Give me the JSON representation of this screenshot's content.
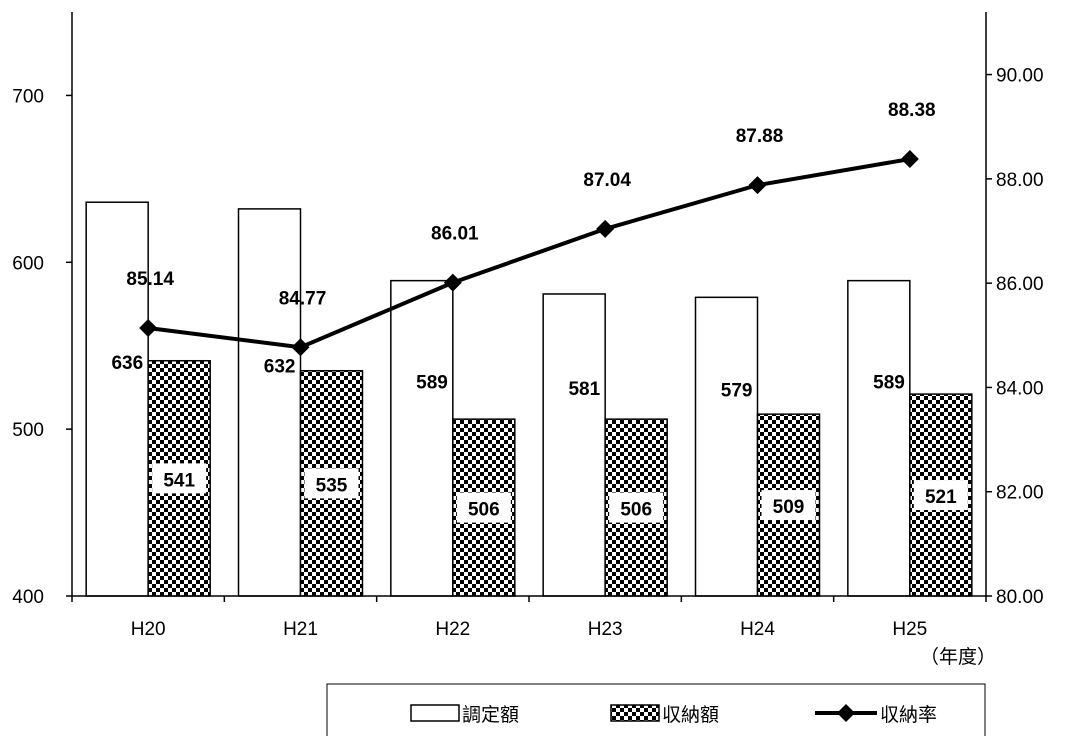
{
  "chart_data": {
    "type": "bar",
    "categories": [
      "H20",
      "H21",
      "H22",
      "H23",
      "H24",
      "H25"
    ],
    "x_unit": "（年度）",
    "series": [
      {
        "name": "調定額",
        "type": "bar",
        "axis": "left",
        "pattern": "white",
        "values": [
          636,
          632,
          589,
          581,
          579,
          589
        ]
      },
      {
        "name": "収納額",
        "type": "bar",
        "axis": "left",
        "pattern": "checker",
        "values": [
          541,
          535,
          506,
          506,
          509,
          521
        ]
      },
      {
        "name": "収納率",
        "type": "line",
        "axis": "right",
        "marker": "diamond",
        "values": [
          85.14,
          84.77,
          86.01,
          87.04,
          87.88,
          88.38
        ]
      }
    ],
    "left_axis": {
      "ylim": [
        400,
        750
      ],
      "ticks": [
        "400",
        "500",
        "600",
        "700"
      ]
    },
    "right_axis": {
      "ylim": [
        80,
        91.2
      ],
      "ticks": [
        "80.00",
        "82.00",
        "84.00",
        "86.00",
        "88.00",
        "90.00"
      ]
    },
    "grid": false,
    "legend_position": "bottom-right",
    "colors": {
      "bar_fill": "#ffffff",
      "checker_dark": "#000000",
      "checker_light": "#ffffff",
      "line": "#000000",
      "axis": "#000000"
    }
  }
}
